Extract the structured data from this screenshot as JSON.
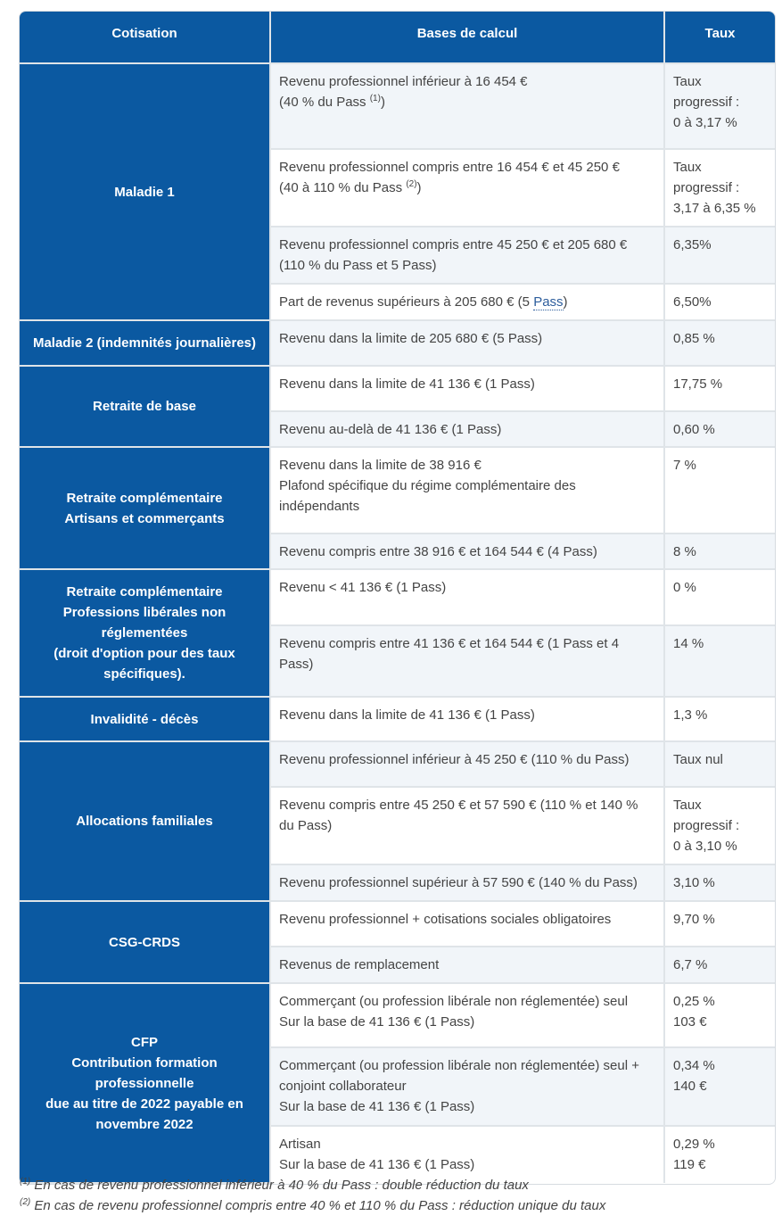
{
  "headers": [
    "Cotisation",
    "Bases de calcul",
    "Taux"
  ],
  "groups": [
    {
      "name": [
        "Maladie 1"
      ],
      "rows": [
        {
          "base": [
            "Revenu professionnel inférieur à 16 454 €",
            "(40 % du Pass |(1)|)"
          ],
          "taux": [
            "Taux",
            "progressif :",
            "0 à 3,17 %"
          ]
        },
        {
          "base": [
            "Revenu professionnel compris entre 16 454 € et 45 250 €",
            "(40 à 110 % du Pass |(2)|)"
          ],
          "taux": [
            "Taux",
            "progressif :",
            "3,17 à 6,35 %"
          ]
        },
        {
          "base": [
            "Revenu professionnel compris entre 45 250 € et 205 680 €",
            "(110 % du Pass et 5 Pass)"
          ],
          "taux": [
            "6,35%"
          ]
        },
        {
          "base": [
            "Part de revenus supérieurs à 205 680 € (5 Pass)"
          ],
          "taux": [
            "6,50%"
          ]
        }
      ]
    },
    {
      "name": [
        "Maladie 2 (indemnités journalières)"
      ],
      "rows": [
        {
          "base": [
            "Revenu dans la limite de 205 680 € (5 Pass)"
          ],
          "taux": [
            "0,85 %"
          ]
        }
      ]
    },
    {
      "name": [
        "Retraite de base"
      ],
      "rows": [
        {
          "base": [
            "Revenu dans la limite de 41 136 € (1 Pass)"
          ],
          "taux": [
            "17,75 %"
          ]
        },
        {
          "base": [
            "Revenu au-delà de 41 136 € (1 Pass)"
          ],
          "taux": [
            "0,60 %"
          ]
        }
      ]
    },
    {
      "name": [
        "Retraite complémentaire",
        "Artisans et commerçants"
      ],
      "rows": [
        {
          "base": [
            "Revenu dans la limite de 38 916 €",
            "Plafond spécifique du régime complémentaire des indépendants"
          ],
          "taux": [
            "7 %"
          ]
        },
        {
          "base": [
            "Revenu compris entre 38 916 € et 164 544 € (4 Pass)"
          ],
          "taux": [
            "8 %"
          ]
        }
      ]
    },
    {
      "name": [
        "Retraite complémentaire",
        "Professions libérales non réglementées",
        "(droit d'option pour des taux spécifiques)."
      ],
      "rows": [
        {
          "base": [
            "Revenu < 41 136 € (1 Pass)"
          ],
          "taux": [
            "0 %"
          ]
        },
        {
          "base": [
            "Revenu compris entre 41 136 € et 164 544 € (1 Pass et 4 Pass)"
          ],
          "taux": [
            "14 %"
          ]
        }
      ]
    },
    {
      "name": [
        "Invalidité - décès"
      ],
      "rows": [
        {
          "base": [
            "Revenu dans la limite de 41 136 € (1 Pass)"
          ],
          "taux": [
            "1,3 %"
          ]
        }
      ]
    },
    {
      "name": [
        "Allocations familiales"
      ],
      "rows": [
        {
          "base": [
            "Revenu professionnel inférieur à 45 250 € (110 % du Pass)"
          ],
          "taux": [
            "Taux nul"
          ]
        },
        {
          "base": [
            "Revenu compris entre 45 250 € et 57 590 € (110 % et 140 % du Pass)"
          ],
          "taux": [
            "Taux",
            "progressif :",
            "0 à 3,10 %"
          ]
        },
        {
          "base": [
            "Revenu professionnel supérieur à 57 590 € (140 % du Pass)"
          ],
          "taux": [
            "3,10 %"
          ]
        }
      ]
    },
    {
      "name": [
        "CSG-CRDS"
      ],
      "rows": [
        {
          "base": [
            "Revenu professionnel + cotisations sociales obligatoires"
          ],
          "taux": [
            "9,70 %"
          ]
        },
        {
          "base": [
            "Revenus de remplacement"
          ],
          "taux": [
            "6,7 %"
          ]
        }
      ]
    },
    {
      "name": [
        "CFP",
        "Contribution formation professionnelle",
        "due au titre de 2022 payable en novembre 2022"
      ],
      "rows": [
        {
          "base": [
            "Commerçant (ou profession libérale non réglementée) seul",
            "Sur la base de 41 136 € (1 Pass)"
          ],
          "taux": [
            "0,25 %",
            "103 €"
          ]
        },
        {
          "base": [
            "Commerçant (ou profession libérale non réglementée) seul + conjoint collaborateur",
            "Sur la base de 41 136 € (1 Pass)"
          ],
          "taux": [
            "0,34 %",
            "140 €"
          ]
        },
        {
          "base": [
            "Artisan",
            "Sur la base de 41 136 € (1 Pass)"
          ],
          "taux": [
            "0,29 %",
            "119 €"
          ]
        }
      ]
    }
  ],
  "footnotes": [
    {
      "mark": "(1)",
      "text": "En cas de revenu professionnel inférieur à 40 % du Pass : double réduction du taux"
    },
    {
      "mark": "(2)",
      "text": "En cas de revenu professionnel compris entre 40 % et 110 % du Pass : réduction unique du taux"
    }
  ],
  "colors": {
    "header_bg": "#0b59a1",
    "stripe": "#f1f5f9",
    "link": "#2d5d9c"
  }
}
